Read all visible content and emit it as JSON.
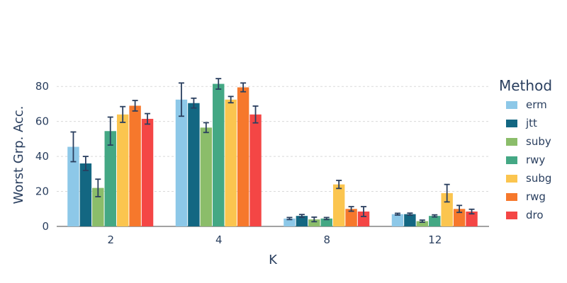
{
  "chart_data": {
    "type": "bar",
    "title": "",
    "xlabel": "K",
    "ylabel": "Worst Grp. Acc.",
    "ylim": [
      0,
      89
    ],
    "yticks": [
      0,
      20,
      40,
      60,
      80
    ],
    "grid": true,
    "legend": {
      "title": "Method",
      "placement": "right"
    },
    "categories": [
      "2",
      "4",
      "8",
      "12"
    ],
    "series": [
      {
        "name": "erm",
        "color": "#8dc8e8",
        "values": [
          45.5,
          72.5,
          4.5,
          7.0
        ],
        "error": [
          8.5,
          9.5,
          0.6,
          0.5
        ]
      },
      {
        "name": "jtt",
        "color": "#136782",
        "values": [
          36.0,
          70.5,
          6.0,
          7.0
        ],
        "error": [
          4.0,
          2.8,
          0.8,
          0.6
        ]
      },
      {
        "name": "suby",
        "color": "#8bbd6a",
        "values": [
          22.0,
          56.5,
          4.0,
          3.0
        ],
        "error": [
          5.0,
          2.8,
          1.3,
          0.6
        ]
      },
      {
        "name": "rwy",
        "color": "#44a884",
        "values": [
          54.5,
          81.5,
          4.5,
          6.0
        ],
        "error": [
          8.0,
          3.0,
          0.6,
          0.6
        ]
      },
      {
        "name": "subg",
        "color": "#fbc54f",
        "values": [
          64.0,
          72.5,
          24.0,
          19.0
        ],
        "error": [
          4.5,
          1.8,
          2.3,
          5.0
        ]
      },
      {
        "name": "rwg",
        "color": "#f6782c",
        "values": [
          69.0,
          79.5,
          10.0,
          10.0
        ],
        "error": [
          3.0,
          2.5,
          1.3,
          2.0
        ]
      },
      {
        "name": "dro",
        "color": "#f44645",
        "values": [
          61.5,
          64.0,
          8.5,
          8.5
        ],
        "error": [
          3.0,
          4.8,
          2.8,
          1.3
        ]
      }
    ]
  }
}
